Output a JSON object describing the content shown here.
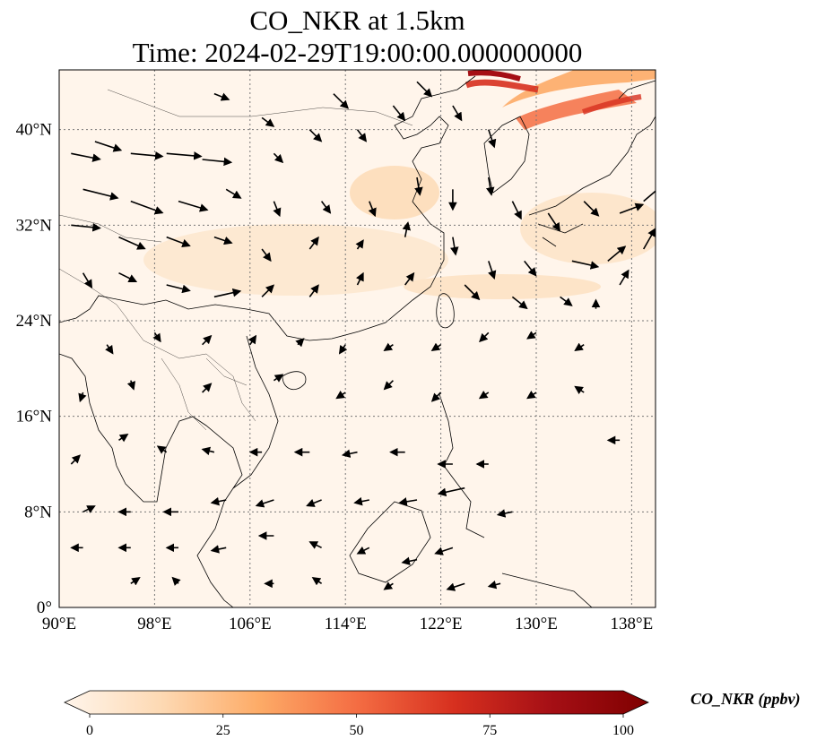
{
  "title_line1": "CO_NKR at 1.5km",
  "title_line2": "Time: 2024-02-29T19:00:00.000000000",
  "map": {
    "lon_range": [
      90,
      140
    ],
    "lat_range": [
      0,
      45
    ],
    "lon_ticks": [
      90,
      98,
      106,
      114,
      122,
      130,
      138
    ],
    "lon_tick_labels": [
      "90°E",
      "98°E",
      "106°E",
      "114°E",
      "122°E",
      "130°E",
      "138°E"
    ],
    "lat_ticks": [
      0,
      8,
      16,
      24,
      32,
      40
    ],
    "lat_tick_labels": [
      "0°",
      "8°N",
      "16°N",
      "24°N",
      "32°N",
      "40°N"
    ],
    "gridlines": true,
    "background_color": "#fff5eb",
    "plume_color": "#d7301f"
  },
  "colorbar": {
    "label": "CO_NKR (ppbv)",
    "min": 0,
    "max": 100,
    "ticks": [
      0,
      25,
      50,
      75,
      100
    ],
    "tick_labels": [
      "0",
      "25",
      "50",
      "75",
      "100"
    ],
    "extend": "both",
    "colormap": [
      "#fff5eb",
      "#fdd9b3",
      "#fdab67",
      "#f46d43",
      "#d7301f",
      "#a50f15",
      "#7f0000"
    ]
  },
  "wind_vectors": [
    {
      "lon": 91,
      "lat": 38,
      "u": 1.0,
      "v": -0.2
    },
    {
      "lon": 93,
      "lat": 39,
      "u": 0.9,
      "v": -0.3
    },
    {
      "lon": 96,
      "lat": 38,
      "u": 1.1,
      "v": -0.1
    },
    {
      "lon": 99,
      "lat": 38,
      "u": 1.2,
      "v": -0.1
    },
    {
      "lon": 102,
      "lat": 37.5,
      "u": 1.0,
      "v": -0.1
    },
    {
      "lon": 103,
      "lat": 43,
      "u": 0.5,
      "v": -0.2
    },
    {
      "lon": 107,
      "lat": 41,
      "u": 0.4,
      "v": -0.3
    },
    {
      "lon": 108,
      "lat": 38,
      "u": 0.3,
      "v": -0.3
    },
    {
      "lon": 111,
      "lat": 40,
      "u": 0.4,
      "v": -0.4
    },
    {
      "lon": 113,
      "lat": 43,
      "u": 0.5,
      "v": -0.5
    },
    {
      "lon": 115,
      "lat": 40,
      "u": 0.3,
      "v": -0.4
    },
    {
      "lon": 118,
      "lat": 42,
      "u": 0.4,
      "v": -0.5
    },
    {
      "lon": 120,
      "lat": 44,
      "u": 0.5,
      "v": -0.5
    },
    {
      "lon": 123,
      "lat": 42,
      "u": 0.3,
      "v": -0.5
    },
    {
      "lon": 126,
      "lat": 40,
      "u": 0.2,
      "v": -0.6
    },
    {
      "lon": 92,
      "lat": 35,
      "u": 1.2,
      "v": -0.3
    },
    {
      "lon": 96,
      "lat": 34,
      "u": 1.1,
      "v": -0.4
    },
    {
      "lon": 100,
      "lat": 34,
      "u": 1.0,
      "v": -0.3
    },
    {
      "lon": 104,
      "lat": 35,
      "u": 0.5,
      "v": -0.3
    },
    {
      "lon": 108,
      "lat": 34,
      "u": 0.2,
      "v": -0.5
    },
    {
      "lon": 112,
      "lat": 34,
      "u": 0.3,
      "v": -0.4
    },
    {
      "lon": 116,
      "lat": 34,
      "u": 0.2,
      "v": -0.5
    },
    {
      "lon": 120,
      "lat": 36,
      "u": 0.1,
      "v": -0.6
    },
    {
      "lon": 123,
      "lat": 35,
      "u": 0.0,
      "v": -0.7
    },
    {
      "lon": 126,
      "lat": 36,
      "u": 0.1,
      "v": -0.6
    },
    {
      "lon": 128,
      "lat": 34,
      "u": 0.3,
      "v": -0.6
    },
    {
      "lon": 131,
      "lat": 33,
      "u": 0.4,
      "v": -0.6
    },
    {
      "lon": 134,
      "lat": 34,
      "u": 0.5,
      "v": -0.5
    },
    {
      "lon": 137,
      "lat": 33,
      "u": 0.8,
      "v": 0.3
    },
    {
      "lon": 139,
      "lat": 34,
      "u": 0.7,
      "v": 0.6
    },
    {
      "lon": 91,
      "lat": 32,
      "u": 1.0,
      "v": -0.1
    },
    {
      "lon": 95,
      "lat": 31,
      "u": 0.9,
      "v": -0.4
    },
    {
      "lon": 99,
      "lat": 31,
      "u": 0.8,
      "v": -0.3
    },
    {
      "lon": 103,
      "lat": 31,
      "u": 0.6,
      "v": -0.2
    },
    {
      "lon": 107,
      "lat": 30,
      "u": 0.3,
      "v": -0.4
    },
    {
      "lon": 111,
      "lat": 30,
      "u": 0.3,
      "v": 0.4
    },
    {
      "lon": 115,
      "lat": 30,
      "u": 0.2,
      "v": 0.3
    },
    {
      "lon": 119,
      "lat": 31,
      "u": 0.1,
      "v": 0.5
    },
    {
      "lon": 123,
      "lat": 31,
      "u": 0.1,
      "v": -0.6
    },
    {
      "lon": 126,
      "lat": 29,
      "u": 0.2,
      "v": -0.6
    },
    {
      "lon": 129,
      "lat": 29,
      "u": 0.4,
      "v": -0.5
    },
    {
      "lon": 133,
      "lat": 29,
      "u": 0.9,
      "v": -0.2
    },
    {
      "lon": 136,
      "lat": 29,
      "u": 0.6,
      "v": 0.5
    },
    {
      "lon": 139,
      "lat": 30,
      "u": 0.4,
      "v": 0.7
    },
    {
      "lon": 92,
      "lat": 28,
      "u": 0.3,
      "v": -0.5
    },
    {
      "lon": 95,
      "lat": 28,
      "u": 0.6,
      "v": -0.3
    },
    {
      "lon": 99,
      "lat": 27,
      "u": 0.8,
      "v": -0.2
    },
    {
      "lon": 103,
      "lat": 26,
      "u": 0.9,
      "v": 0.2
    },
    {
      "lon": 107,
      "lat": 26,
      "u": 0.4,
      "v": 0.4
    },
    {
      "lon": 111,
      "lat": 26,
      "u": 0.3,
      "v": 0.4
    },
    {
      "lon": 115,
      "lat": 27,
      "u": 0.2,
      "v": 0.4
    },
    {
      "lon": 119,
      "lat": 27,
      "u": 0.3,
      "v": 0.4
    },
    {
      "lon": 124,
      "lat": 27,
      "u": 0.5,
      "v": -0.5
    },
    {
      "lon": 128,
      "lat": 26,
      "u": 0.5,
      "v": -0.4
    },
    {
      "lon": 132,
      "lat": 26,
      "u": 0.4,
      "v": -0.3
    },
    {
      "lon": 135,
      "lat": 25,
      "u": 0.0,
      "v": 0.3
    },
    {
      "lon": 137,
      "lat": 27,
      "u": 0.3,
      "v": 0.5
    },
    {
      "lon": 94,
      "lat": 22,
      "u": 0.2,
      "v": -0.3
    },
    {
      "lon": 98,
      "lat": 23,
      "u": 0.2,
      "v": -0.3
    },
    {
      "lon": 102,
      "lat": 22,
      "u": 0.3,
      "v": 0.3
    },
    {
      "lon": 106,
      "lat": 22,
      "u": 0.2,
      "v": 0.3
    },
    {
      "lon": 110,
      "lat": 22,
      "u": 0.2,
      "v": 0.2
    },
    {
      "lon": 114,
      "lat": 22,
      "u": -0.2,
      "v": -0.3
    },
    {
      "lon": 118,
      "lat": 22,
      "u": -0.3,
      "v": -0.2
    },
    {
      "lon": 122,
      "lat": 22,
      "u": -0.3,
      "v": -0.2
    },
    {
      "lon": 126,
      "lat": 23,
      "u": -0.3,
      "v": -0.3
    },
    {
      "lon": 130,
      "lat": 23,
      "u": -0.3,
      "v": -0.2
    },
    {
      "lon": 134,
      "lat": 22,
      "u": -0.3,
      "v": -0.2
    },
    {
      "lon": 92,
      "lat": 18,
      "u": -0.1,
      "v": -0.3
    },
    {
      "lon": 96,
      "lat": 19,
      "u": 0.1,
      "v": -0.3
    },
    {
      "lon": 102,
      "lat": 18,
      "u": 0.3,
      "v": 0.3
    },
    {
      "lon": 108,
      "lat": 19,
      "u": 0.3,
      "v": 0.2
    },
    {
      "lon": 114,
      "lat": 18,
      "u": -0.3,
      "v": -0.2
    },
    {
      "lon": 118,
      "lat": 19,
      "u": -0.3,
      "v": -0.3
    },
    {
      "lon": 122,
      "lat": 18,
      "u": -0.3,
      "v": -0.3
    },
    {
      "lon": 126,
      "lat": 18,
      "u": -0.3,
      "v": -0.2
    },
    {
      "lon": 130,
      "lat": 18,
      "u": -0.3,
      "v": -0.2
    },
    {
      "lon": 134,
      "lat": 18,
      "u": -0.3,
      "v": 0.2
    },
    {
      "lon": 137,
      "lat": 14,
      "u": -0.4,
      "v": 0.0
    },
    {
      "lon": 91,
      "lat": 12,
      "u": 0.3,
      "v": 0.3
    },
    {
      "lon": 95,
      "lat": 14,
      "u": 0.3,
      "v": 0.2
    },
    {
      "lon": 99,
      "lat": 13,
      "u": -0.3,
      "v": 0.2
    },
    {
      "lon": 103,
      "lat": 13,
      "u": -0.4,
      "v": 0.1
    },
    {
      "lon": 107,
      "lat": 13,
      "u": -0.4,
      "v": 0.0
    },
    {
      "lon": 111,
      "lat": 13,
      "u": -0.5,
      "v": 0.0
    },
    {
      "lon": 115,
      "lat": 13,
      "u": -0.5,
      "v": -0.1
    },
    {
      "lon": 119,
      "lat": 13,
      "u": -0.5,
      "v": 0.0
    },
    {
      "lon": 123,
      "lat": 12,
      "u": -0.5,
      "v": 0.0
    },
    {
      "lon": 126,
      "lat": 12,
      "u": -0.4,
      "v": 0.0
    },
    {
      "lon": 92,
      "lat": 8,
      "u": 0.4,
      "v": 0.2
    },
    {
      "lon": 96,
      "lat": 8,
      "u": -0.4,
      "v": 0.0
    },
    {
      "lon": 100,
      "lat": 8,
      "u": -0.5,
      "v": 0.0
    },
    {
      "lon": 104,
      "lat": 9,
      "u": -0.5,
      "v": -0.1
    },
    {
      "lon": 108,
      "lat": 9,
      "u": -0.6,
      "v": -0.2
    },
    {
      "lon": 112,
      "lat": 9,
      "u": -0.5,
      "v": -0.2
    },
    {
      "lon": 116,
      "lat": 9,
      "u": -0.5,
      "v": -0.1
    },
    {
      "lon": 120,
      "lat": 9,
      "u": -0.6,
      "v": -0.1
    },
    {
      "lon": 124,
      "lat": 10,
      "u": -0.9,
      "v": -0.2
    },
    {
      "lon": 128,
      "lat": 8,
      "u": -0.5,
      "v": -0.1
    },
    {
      "lon": 92,
      "lat": 5,
      "u": -0.4,
      "v": 0.0
    },
    {
      "lon": 96,
      "lat": 5,
      "u": -0.4,
      "v": 0.0
    },
    {
      "lon": 100,
      "lat": 5,
      "u": -0.4,
      "v": 0.0
    },
    {
      "lon": 104,
      "lat": 5,
      "u": -0.5,
      "v": -0.1
    },
    {
      "lon": 108,
      "lat": 6,
      "u": -0.5,
      "v": 0.0
    },
    {
      "lon": 112,
      "lat": 5,
      "u": -0.4,
      "v": 0.2
    },
    {
      "lon": 116,
      "lat": 5,
      "u": -0.4,
      "v": -0.2
    },
    {
      "lon": 120,
      "lat": 4,
      "u": -0.5,
      "v": -0.1
    },
    {
      "lon": 123,
      "lat": 5,
      "u": -0.6,
      "v": -0.2
    },
    {
      "lon": 96,
      "lat": 2,
      "u": 0.3,
      "v": 0.2
    },
    {
      "lon": 100,
      "lat": 2,
      "u": -0.2,
      "v": 0.2
    },
    {
      "lon": 108,
      "lat": 2,
      "u": -0.3,
      "v": 0.0
    },
    {
      "lon": 112,
      "lat": 2,
      "u": -0.3,
      "v": 0.2
    },
    {
      "lon": 118,
      "lat": 2,
      "u": -0.3,
      "v": -0.2
    },
    {
      "lon": 124,
      "lat": 2,
      "u": -0.6,
      "v": -0.2
    },
    {
      "lon": 127,
      "lat": 2,
      "u": -0.4,
      "v": -0.1
    }
  ]
}
